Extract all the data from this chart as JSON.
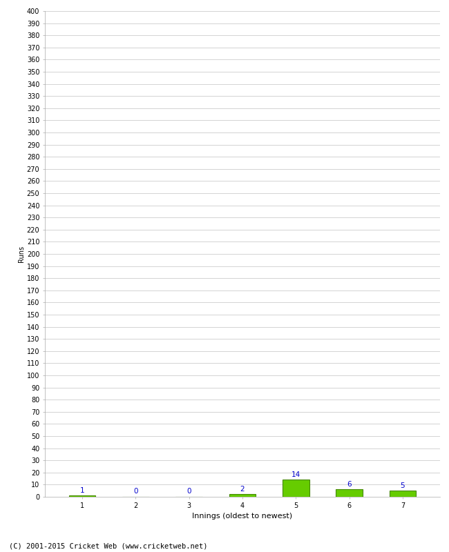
{
  "values": [
    1,
    0,
    0,
    2,
    14,
    6,
    5
  ],
  "categories": [
    "1",
    "2",
    "3",
    "4",
    "5",
    "6",
    "7"
  ],
  "bar_color": "#66cc00",
  "bar_edge_color": "#448800",
  "label_color": "#0000cc",
  "xlabel": "Innings (oldest to newest)",
  "ylabel": "Runs",
  "ylim_min": 0,
  "ylim_max": 400,
  "ytick_step": 10,
  "background_color": "#ffffff",
  "grid_color": "#cccccc",
  "footer": "(C) 2001-2015 Cricket Web (www.cricketweb.net)",
  "label_fontsize": 7.5,
  "axis_tick_fontsize": 7,
  "xlabel_fontsize": 8,
  "ylabel_fontsize": 7,
  "footer_fontsize": 7.5
}
